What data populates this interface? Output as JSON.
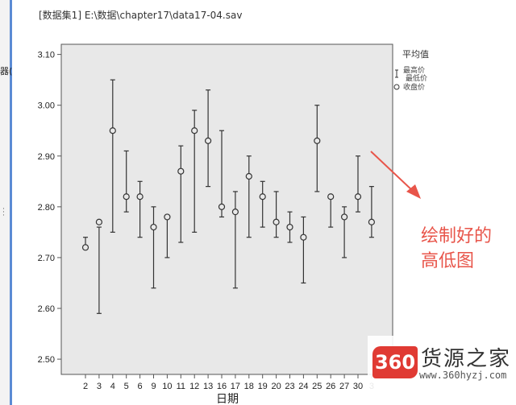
{
  "file_header": "[数据集1] E:\\数据\\chapter17\\data17-04.sav",
  "left_cut_label": "器(",
  "annotation_text": [
    "绘制好的",
    "高低图"
  ],
  "watermark": {
    "badge": "360",
    "title": "货源之家",
    "url": "www.360hyzj.com"
  },
  "colors": {
    "plot_bg": "#e8e8e8",
    "marks": "#333333",
    "annotation": "#e8554a"
  },
  "chart_data": {
    "type": "high-low-close",
    "title": "",
    "xlabel": "日期",
    "ylabel": "",
    "ylim": [
      2.47,
      3.12
    ],
    "yticks": [
      2.5,
      2.6,
      2.7,
      2.8,
      2.9,
      3.0,
      3.1
    ],
    "ytick_labels": [
      "2.50",
      "2.60",
      "2.70",
      "2.80",
      "2.90",
      "3.00",
      "3.10"
    ],
    "categories": [
      "2",
      "3",
      "4",
      "5",
      "6",
      "9",
      "10",
      "11",
      "12",
      "13",
      "16",
      "17",
      "18",
      "19",
      "20",
      "23",
      "24",
      "25",
      "26",
      "27",
      "30",
      "3"
    ],
    "legend": {
      "title": "平均值",
      "entries": [
        "最高价",
        "最低价",
        "收盘价"
      ],
      "placement": "top-right outside plot"
    },
    "series": [
      {
        "name": "最高价",
        "values": [
          2.74,
          2.76,
          3.05,
          2.91,
          2.85,
          2.8,
          2.78,
          2.92,
          2.99,
          3.03,
          2.95,
          2.83,
          2.9,
          2.85,
          2.83,
          2.79,
          2.78,
          3.0,
          null,
          2.8,
          2.9,
          2.84
        ]
      },
      {
        "name": "最低价",
        "values": [
          2.72,
          2.59,
          2.75,
          2.79,
          2.74,
          2.64,
          2.7,
          2.73,
          2.75,
          2.84,
          2.78,
          2.64,
          2.74,
          2.76,
          2.74,
          2.73,
          2.65,
          2.83,
          2.76,
          2.7,
          2.79,
          2.74
        ]
      },
      {
        "name": "收盘价",
        "values": [
          2.72,
          2.77,
          2.95,
          2.82,
          2.82,
          2.76,
          2.78,
          2.87,
          2.95,
          2.93,
          2.8,
          2.79,
          2.86,
          2.82,
          2.77,
          2.76,
          2.74,
          2.93,
          2.82,
          2.78,
          2.82,
          2.77
        ]
      }
    ]
  }
}
